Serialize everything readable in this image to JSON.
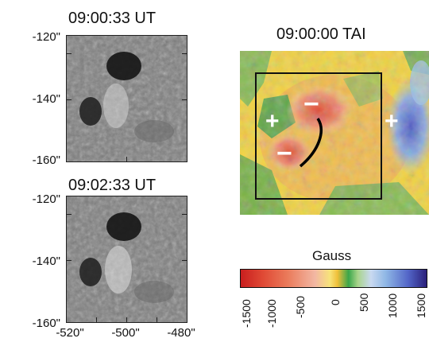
{
  "panels": {
    "top_left": {
      "title": "09:00:33 UT"
    },
    "bottom_left": {
      "title": "09:02:33 UT"
    },
    "right": {
      "title": "09:00:00 TAI"
    }
  },
  "axes": {
    "y_ticks_top": [
      "-120\"",
      "-140\"",
      "-160\""
    ],
    "y_ticks_bottom": [
      "-120\"",
      "-140\"",
      "-160\""
    ],
    "x_ticks": [
      "-520\"",
      "-500\"",
      "-480\""
    ]
  },
  "magnetogram": {
    "polarity_marks": [
      "+",
      "−",
      "−",
      "+"
    ]
  },
  "colorbar": {
    "label": "Gauss",
    "ticks": [
      "-1500",
      "-1000",
      "-500",
      "0",
      "500",
      "1000",
      "1500"
    ],
    "colors": [
      "#c81e1e",
      "#e86a50",
      "#f2b7a3",
      "#f7e37a",
      "#3aa64a",
      "#8fb7e5",
      "#5366c8",
      "#2a1f7a"
    ]
  }
}
